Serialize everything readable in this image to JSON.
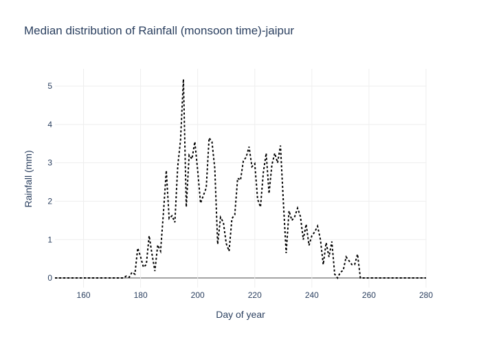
{
  "chart_data": {
    "type": "line",
    "title": "Median distribution of Rainfall (monsoon time)-jaipur",
    "xlabel": "Day of year",
    "ylabel": "Rainfall (mm)",
    "xlim": [
      150,
      280
    ],
    "ylim": [
      -0.25,
      5.45
    ],
    "xticks": [
      160,
      180,
      200,
      220,
      240,
      260,
      280
    ],
    "yticks": [
      0,
      1,
      2,
      3,
      4,
      5
    ],
    "grid": true,
    "line_color": "#000000",
    "line_style": "dotted",
    "series": [
      {
        "x": [
          150,
          152,
          155,
          158,
          160,
          163,
          165,
          168,
          170,
          172,
          174,
          175,
          176,
          177,
          178,
          179,
          180,
          181,
          182,
          183,
          184,
          185,
          186,
          187,
          188,
          189,
          190,
          191,
          192,
          193,
          194,
          195,
          196,
          197,
          198,
          199,
          200,
          201,
          202,
          203,
          204,
          205,
          206,
          207,
          208,
          209,
          210,
          211,
          212,
          213,
          214,
          215,
          216,
          217,
          218,
          219,
          220,
          221,
          222,
          223,
          224,
          225,
          226,
          227,
          228,
          229,
          230,
          231,
          232,
          233,
          234,
          235,
          236,
          237,
          238,
          239,
          240,
          241,
          242,
          243,
          244,
          245,
          246,
          247,
          248,
          249,
          250,
          251,
          252,
          253,
          254,
          255,
          256,
          257,
          258,
          260,
          263,
          265,
          268,
          270,
          273,
          275,
          278,
          280
        ],
        "y": [
          0,
          0,
          0,
          0,
          0,
          0,
          0,
          0,
          0,
          0,
          0,
          0.05,
          0.02,
          0.15,
          0.1,
          0.78,
          0.55,
          0.28,
          0.35,
          1.1,
          0.62,
          0.18,
          0.86,
          0.7,
          1.7,
          2.8,
          1.55,
          1.62,
          1.45,
          2.9,
          3.6,
          5.18,
          1.85,
          3.2,
          3.1,
          3.55,
          2.8,
          1.95,
          2.15,
          2.35,
          3.65,
          3.55,
          2.85,
          0.88,
          1.58,
          1.45,
          0.9,
          0.7,
          1.55,
          1.65,
          2.6,
          2.55,
          3.05,
          3.15,
          3.42,
          2.9,
          2.98,
          2.05,
          1.85,
          2.75,
          3.25,
          2.2,
          2.95,
          3.25,
          3.0,
          3.45,
          2.0,
          0.65,
          1.75,
          1.5,
          1.6,
          1.82,
          1.6,
          1.0,
          1.4,
          0.85,
          1.1,
          1.2,
          1.35,
          1.0,
          0.35,
          0.92,
          0.55,
          0.95,
          0.1,
          0.0,
          0.15,
          0.2,
          0.55,
          0.45,
          0.35,
          0.35,
          0.62,
          0.0,
          0,
          0,
          0,
          0,
          0,
          0,
          0,
          0,
          0,
          0
        ]
      }
    ]
  }
}
